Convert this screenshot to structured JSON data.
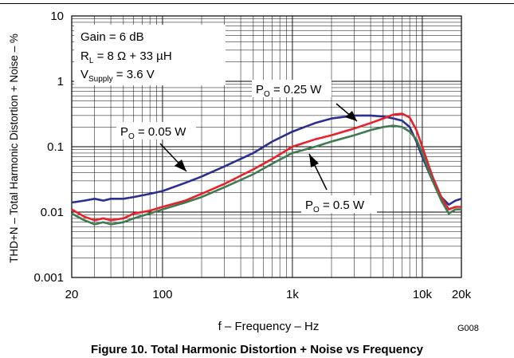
{
  "caption": "Figure 10. Total Harmonic Distortion + Noise vs Frequency",
  "figure_id": "G008",
  "chart_data": {
    "type": "line",
    "xlabel": "f – Frequency – Hz",
    "ylabel": "THD+N – Total Harmonic Distortion + Noise – %",
    "x_scale": "log",
    "y_scale": "log",
    "xlim": [
      20,
      20000
    ],
    "ylim": [
      0.001,
      10
    ],
    "x_ticks": [
      {
        "value": 20,
        "label": "20"
      },
      {
        "value": 100,
        "label": "100"
      },
      {
        "value": 1000,
        "label": "1k"
      },
      {
        "value": 10000,
        "label": "10k"
      },
      {
        "value": 20000,
        "label": "20k"
      }
    ],
    "y_ticks": [
      {
        "value": 0.001,
        "label": "0.001"
      },
      {
        "value": 0.01,
        "label": "0.01"
      },
      {
        "value": 0.1,
        "label": "0.1"
      },
      {
        "value": 1,
        "label": "1"
      },
      {
        "value": 10,
        "label": "10"
      }
    ],
    "grid": true,
    "legend_box": {
      "gain": "Gain = 6 dB",
      "load_main": "R",
      "load_sub": "L",
      "load_rest": " = 8 Ω + 33 µH",
      "supply_main": "V",
      "supply_sub": "Supply",
      "supply_rest": " = 3.6 V"
    },
    "series": [
      {
        "label_main": "P",
        "label_sub": "O",
        "label_rest": " = 0.05 W",
        "color": "#2b2f8f",
        "x": [
          20,
          25,
          30,
          35,
          40,
          50,
          60,
          80,
          100,
          150,
          200,
          300,
          500,
          700,
          1000,
          1500,
          2000,
          3000,
          4000,
          5000,
          6000,
          7000,
          8000,
          9000,
          10000,
          12000,
          14000,
          16000,
          18000,
          20000
        ],
        "y": [
          0.014,
          0.015,
          0.016,
          0.015,
          0.016,
          0.016,
          0.017,
          0.019,
          0.021,
          0.028,
          0.035,
          0.05,
          0.08,
          0.12,
          0.17,
          0.23,
          0.27,
          0.3,
          0.3,
          0.29,
          0.27,
          0.25,
          0.2,
          0.12,
          0.07,
          0.03,
          0.017,
          0.013,
          0.015,
          0.016
        ]
      },
      {
        "label_main": "P",
        "label_sub": "O",
        "label_rest": " = 0.25 W",
        "color": "#e8202a",
        "x": [
          20,
          25,
          30,
          35,
          40,
          50,
          60,
          80,
          100,
          150,
          200,
          300,
          500,
          700,
          1000,
          1500,
          2000,
          3000,
          4000,
          5000,
          6000,
          7000,
          8000,
          9000,
          10000,
          12000,
          14000,
          16000,
          18000,
          20000
        ],
        "y": [
          0.011,
          0.0085,
          0.0075,
          0.008,
          0.0075,
          0.008,
          0.0095,
          0.0105,
          0.012,
          0.015,
          0.019,
          0.027,
          0.045,
          0.065,
          0.1,
          0.13,
          0.15,
          0.19,
          0.23,
          0.27,
          0.31,
          0.32,
          0.28,
          0.18,
          0.1,
          0.035,
          0.017,
          0.011,
          0.012,
          0.012
        ]
      },
      {
        "label_main": "P",
        "label_sub": "O",
        "label_rest": " = 0.5 W",
        "color": "#3f7a50",
        "x": [
          20,
          25,
          30,
          35,
          40,
          50,
          60,
          80,
          100,
          150,
          200,
          300,
          500,
          700,
          1000,
          1500,
          2000,
          3000,
          4000,
          5000,
          6000,
          7000,
          8000,
          9000,
          10000,
          12000,
          14000,
          16000,
          18000,
          20000
        ],
        "y": [
          0.0095,
          0.0075,
          0.0065,
          0.007,
          0.0065,
          0.007,
          0.008,
          0.0095,
          0.011,
          0.014,
          0.017,
          0.024,
          0.038,
          0.055,
          0.08,
          0.1,
          0.12,
          0.15,
          0.18,
          0.2,
          0.21,
          0.2,
          0.17,
          0.13,
          0.08,
          0.03,
          0.015,
          0.0095,
          0.011,
          0.011
        ]
      }
    ]
  }
}
